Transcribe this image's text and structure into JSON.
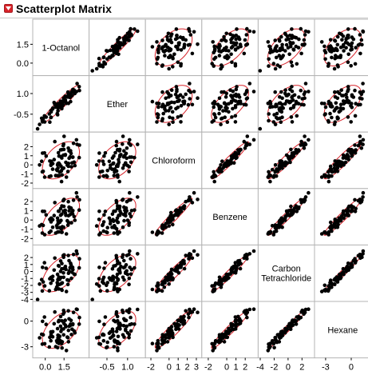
{
  "report": {
    "title": "Scatterplot Matrix",
    "disclosure_icon": "red-triangle-menu-icon"
  },
  "chart_data": {
    "type": "scatter",
    "title": "Scatterplot Matrix",
    "variables": [
      "1-Octanol",
      "Ether",
      "Chloroform",
      "Benzene",
      "Carbon Tetrachloride",
      "Hexane"
    ],
    "diagonal_labels": [
      [
        "1-Octanol"
      ],
      [
        "Ether"
      ],
      [
        "Chloroform"
      ],
      [
        "Benzene"
      ],
      [
        "Carbon",
        "Tetrachloride"
      ],
      [
        "Hexane"
      ]
    ],
    "ranges": [
      [
        -1.0,
        3.5
      ],
      [
        -1.8,
        2.3
      ],
      [
        -2.6,
        3.6
      ],
      [
        -2.7,
        3.4
      ],
      [
        -4.3,
        3.8
      ],
      [
        -4.3,
        2.3
      ]
    ],
    "y_ticks": [
      {
        "row": 0,
        "labels": [
          "1.5",
          "0.0"
        ],
        "values": [
          1.5,
          0.0
        ]
      },
      {
        "row": 1,
        "labels": [
          "1.0",
          "-0.5"
        ],
        "values": [
          1.0,
          -0.5
        ]
      },
      {
        "row": 2,
        "labels": [
          "2",
          "1",
          "0",
          "-1",
          "-2"
        ],
        "values": [
          2,
          1,
          0,
          -1,
          -2
        ]
      },
      {
        "row": 3,
        "labels": [
          "2",
          "1",
          "0",
          "-1",
          "-2"
        ],
        "values": [
          2,
          1,
          0,
          -1,
          -2
        ]
      },
      {
        "row": 4,
        "labels": [
          "2",
          "1",
          "0",
          "-1",
          "-2",
          "-3",
          "-4"
        ],
        "values": [
          2,
          1,
          0,
          -1,
          -2,
          -3,
          -4
        ]
      },
      {
        "row": 5,
        "labels": [
          "0",
          "-3"
        ],
        "values": [
          0,
          -3
        ]
      }
    ],
    "x_ticks": [
      {
        "col": 0,
        "labels": [
          "0.0",
          "1.5"
        ],
        "values": [
          0.0,
          1.5
        ]
      },
      {
        "col": 1,
        "labels": [
          "-0.5",
          "1.0"
        ],
        "values": [
          -0.5,
          1.0
        ]
      },
      {
        "col": 2,
        "labels": [
          "-2",
          "0",
          "1",
          "2",
          "3"
        ],
        "values": [
          -2,
          0,
          1,
          2,
          3
        ]
      },
      {
        "col": 3,
        "labels": [
          "-2",
          "0",
          "1",
          "2"
        ],
        "values": [
          -2,
          0,
          1,
          2
        ]
      },
      {
        "col": 4,
        "labels": [
          "-4",
          "-2",
          "0",
          "2"
        ],
        "values": [
          -4,
          -2,
          0,
          2
        ]
      },
      {
        "col": 5,
        "labels": [
          "-3",
          "0"
        ],
        "values": [
          -3,
          0
        ]
      }
    ],
    "correlations": [
      [
        1.0,
        0.95,
        0.45,
        0.6,
        0.55,
        0.5
      ],
      [
        0.95,
        1.0,
        0.45,
        0.6,
        0.55,
        0.55
      ],
      [
        0.45,
        0.45,
        1.0,
        0.96,
        0.95,
        0.93
      ],
      [
        0.6,
        0.6,
        0.96,
        1.0,
        0.97,
        0.96
      ],
      [
        0.55,
        0.55,
        0.95,
        0.97,
        1.0,
        0.98
      ],
      [
        0.5,
        0.55,
        0.93,
        0.96,
        0.98,
        1.0
      ]
    ],
    "n_points": 72,
    "density_ellipse": true,
    "colors": {
      "points": "#000000",
      "ellipse": "#d8232a",
      "cell_border": "#b4b4b4"
    },
    "grid": false
  }
}
